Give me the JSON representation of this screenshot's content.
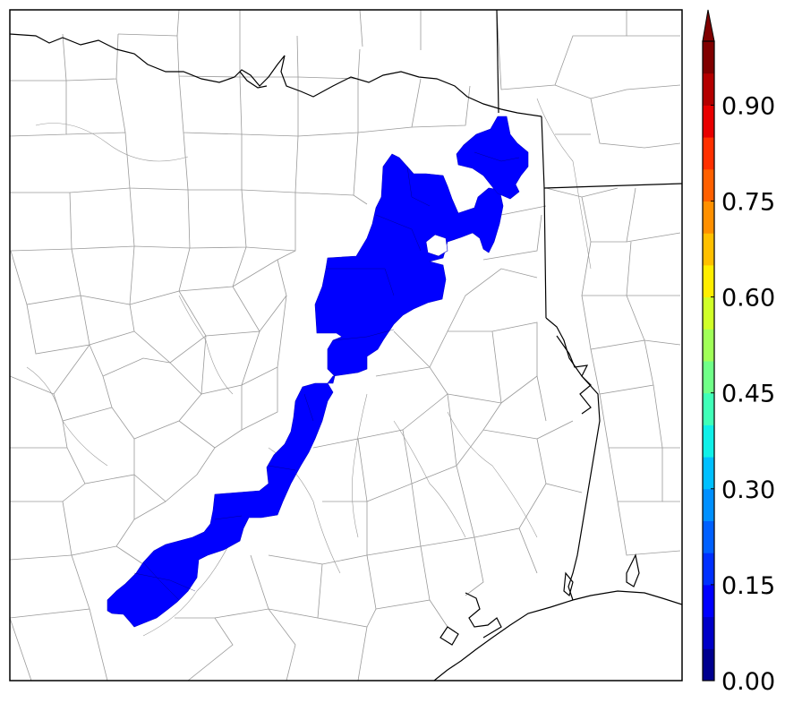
{
  "map": {
    "feature_color": "#0000ff",
    "state_border_color": "#000000",
    "county_border_color": "#9a9a9a"
  },
  "colorbar": {
    "range": [
      0.0,
      1.0
    ],
    "extend": "max",
    "colors": [
      "#00008f",
      "#0000c8",
      "#0000ff",
      "#0030ff",
      "#0060ff",
      "#0090ff",
      "#00c0ff",
      "#10f0e8",
      "#40ffb8",
      "#70ff88",
      "#a0ff58",
      "#d0ff28",
      "#ffee00",
      "#ffc000",
      "#ff9000",
      "#ff6000",
      "#ff3000",
      "#e80000",
      "#b40000",
      "#800000"
    ],
    "extend_color": "#800000",
    "ticks": [
      {
        "value": 0.0,
        "label": "0.00"
      },
      {
        "value": 0.15,
        "label": "0.15"
      },
      {
        "value": 0.3,
        "label": "0.30"
      },
      {
        "value": 0.45,
        "label": "0.45"
      },
      {
        "value": 0.6,
        "label": "0.60"
      },
      {
        "value": 0.75,
        "label": "0.75"
      },
      {
        "value": 0.9,
        "label": "0.90"
      }
    ]
  }
}
